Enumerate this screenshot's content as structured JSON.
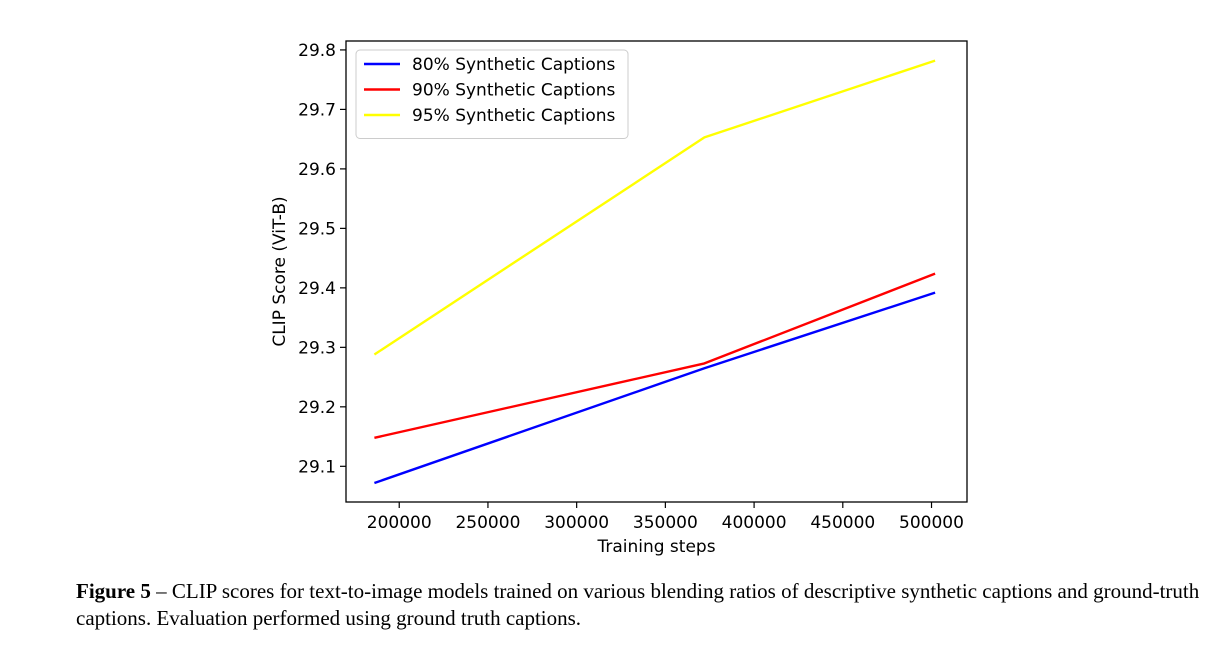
{
  "chart_data": {
    "type": "line",
    "xlabel": "Training steps",
    "ylabel": "CLIP Score (ViT-B)",
    "xlim": [
      170000,
      520000
    ],
    "ylim": [
      29.04,
      29.815
    ],
    "xticks": [
      200000,
      250000,
      300000,
      350000,
      400000,
      450000,
      500000
    ],
    "yticks": [
      29.1,
      29.2,
      29.3,
      29.4,
      29.5,
      29.6,
      29.7,
      29.8
    ],
    "xtick_labels": [
      "200000",
      "250000",
      "300000",
      "350000",
      "400000",
      "450000",
      "500000"
    ],
    "ytick_labels": [
      "29.1",
      "29.2",
      "29.3",
      "29.4",
      "29.5",
      "29.6",
      "29.7",
      "29.8"
    ],
    "grid": false,
    "legend_position": "top-left",
    "series": [
      {
        "name": "80% Synthetic Captions",
        "color": "#0000ff",
        "x": [
          186000,
          372000,
          502000
        ],
        "y": [
          29.072,
          29.265,
          29.392
        ]
      },
      {
        "name": "90% Synthetic Captions",
        "color": "#ff0000",
        "x": [
          186000,
          372000,
          502000
        ],
        "y": [
          29.148,
          29.273,
          29.424
        ]
      },
      {
        "name": "95% Synthetic Captions",
        "color": "#ffff00",
        "x": [
          186000,
          372000,
          502000
        ],
        "y": [
          29.288,
          29.653,
          29.782
        ]
      }
    ]
  },
  "caption": {
    "label": "Figure 5",
    "text": " – CLIP scores for text-to-image models trained on various blending ratios of descriptive synthetic captions and ground-truth captions. Evaluation performed using ground truth captions."
  }
}
